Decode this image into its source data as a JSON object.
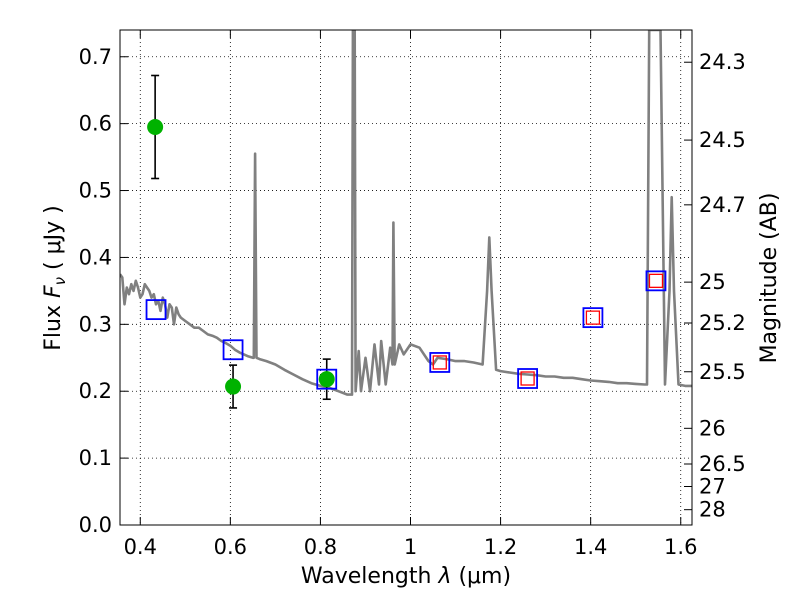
{
  "chart_data": {
    "type": "scatter",
    "xlabel": "Wavelength",
    "xlabel_symbol": "λ",
    "xlabel_unit": "(μm)",
    "ylabel": "Flux",
    "ylabel_symbol": "F",
    "ylabel_symbol_sub": "ν",
    "ylabel_unit": "( μJy )",
    "y2label": "Magnitude (AB)",
    "xlim": [
      0.355,
      1.625
    ],
    "ylim": [
      0.0,
      0.74
    ],
    "grid": true,
    "grid_style": "dotted",
    "x_ticks": [
      {
        "value": 0.4,
        "label": "0.4"
      },
      {
        "value": 0.6,
        "label": "0.6"
      },
      {
        "value": 0.8,
        "label": "0.8"
      },
      {
        "value": 1.0,
        "label": "1"
      },
      {
        "value": 1.2,
        "label": "1.2"
      },
      {
        "value": 1.4,
        "label": "1.4"
      },
      {
        "value": 1.6,
        "label": "1.6"
      }
    ],
    "y_ticks": [
      {
        "value": 0.0,
        "label": "0.0"
      },
      {
        "value": 0.1,
        "label": "0.1"
      },
      {
        "value": 0.2,
        "label": "0.2"
      },
      {
        "value": 0.3,
        "label": "0.3"
      },
      {
        "value": 0.4,
        "label": "0.4"
      },
      {
        "value": 0.5,
        "label": "0.5"
      },
      {
        "value": 0.6,
        "label": "0.6"
      },
      {
        "value": 0.7,
        "label": "0.7"
      }
    ],
    "y2_ticks": [
      {
        "value": 24.3,
        "label": "24.3"
      },
      {
        "value": 24.5,
        "label": "24.5"
      },
      {
        "value": 24.7,
        "label": "24.7"
      },
      {
        "value": 25.0,
        "label": "25"
      },
      {
        "value": 25.2,
        "label": "25.2"
      },
      {
        "value": 25.5,
        "label": "25.5"
      },
      {
        "value": 26.0,
        "label": "26"
      },
      {
        "value": 26.5,
        "label": "26.5"
      },
      {
        "value": 27.0,
        "label": "27"
      },
      {
        "value": 28.0,
        "label": "28"
      }
    ],
    "series": [
      {
        "kind": "line",
        "color": "#808080",
        "points": [
          [
            0.355,
            0.375
          ],
          [
            0.36,
            0.37
          ],
          [
            0.365,
            0.33
          ],
          [
            0.37,
            0.355
          ],
          [
            0.375,
            0.345
          ],
          [
            0.38,
            0.36
          ],
          [
            0.385,
            0.35
          ],
          [
            0.39,
            0.365
          ],
          [
            0.395,
            0.355
          ],
          [
            0.4,
            0.34
          ],
          [
            0.405,
            0.345
          ],
          [
            0.41,
            0.36
          ],
          [
            0.415,
            0.355
          ],
          [
            0.42,
            0.35
          ],
          [
            0.425,
            0.34
          ],
          [
            0.43,
            0.345
          ],
          [
            0.435,
            0.33
          ],
          [
            0.44,
            0.335
          ],
          [
            0.445,
            0.32
          ],
          [
            0.45,
            0.34
          ],
          [
            0.455,
            0.33
          ],
          [
            0.46,
            0.31
          ],
          [
            0.465,
            0.33
          ],
          [
            0.47,
            0.325
          ],
          [
            0.475,
            0.3
          ],
          [
            0.48,
            0.325
          ],
          [
            0.485,
            0.315
          ],
          [
            0.49,
            0.31
          ],
          [
            0.5,
            0.305
          ],
          [
            0.51,
            0.3
          ],
          [
            0.52,
            0.295
          ],
          [
            0.53,
            0.295
          ],
          [
            0.54,
            0.29
          ],
          [
            0.55,
            0.285
          ],
          [
            0.56,
            0.283
          ],
          [
            0.57,
            0.28
          ],
          [
            0.58,
            0.275
          ],
          [
            0.59,
            0.272
          ],
          [
            0.6,
            0.268
          ],
          [
            0.61,
            0.262
          ],
          [
            0.62,
            0.258
          ],
          [
            0.63,
            0.255
          ],
          [
            0.64,
            0.252
          ],
          [
            0.65,
            0.25
          ],
          [
            0.652,
            0.25
          ],
          [
            0.655,
            0.555
          ],
          [
            0.658,
            0.25
          ],
          [
            0.665,
            0.248
          ],
          [
            0.68,
            0.245
          ],
          [
            0.7,
            0.24
          ],
          [
            0.72,
            0.232
          ],
          [
            0.74,
            0.225
          ],
          [
            0.76,
            0.218
          ],
          [
            0.78,
            0.212
          ],
          [
            0.8,
            0.208
          ],
          [
            0.82,
            0.205
          ],
          [
            0.84,
            0.2
          ],
          [
            0.86,
            0.195
          ],
          [
            0.87,
            0.195
          ],
          [
            0.872,
            0.74
          ],
          [
            0.876,
            0.74
          ],
          [
            0.878,
            0.2
          ],
          [
            0.885,
            0.26
          ],
          [
            0.89,
            0.2
          ],
          [
            0.9,
            0.25
          ],
          [
            0.91,
            0.2
          ],
          [
            0.92,
            0.27
          ],
          [
            0.93,
            0.21
          ],
          [
            0.935,
            0.275
          ],
          [
            0.945,
            0.21
          ],
          [
            0.955,
            0.265
          ],
          [
            0.96,
            0.24
          ],
          [
            0.962,
            0.452
          ],
          [
            0.965,
            0.24
          ],
          [
            0.975,
            0.27
          ],
          [
            0.985,
            0.255
          ],
          [
            1.0,
            0.27
          ],
          [
            1.02,
            0.265
          ],
          [
            1.04,
            0.245
          ],
          [
            1.05,
            0.24
          ],
          [
            1.06,
            0.25
          ],
          [
            1.08,
            0.248
          ],
          [
            1.1,
            0.245
          ],
          [
            1.12,
            0.245
          ],
          [
            1.14,
            0.243
          ],
          [
            1.16,
            0.24
          ],
          [
            1.17,
            0.35
          ],
          [
            1.175,
            0.43
          ],
          [
            1.18,
            0.35
          ],
          [
            1.19,
            0.232
          ],
          [
            1.2,
            0.23
          ],
          [
            1.22,
            0.228
          ],
          [
            1.24,
            0.226
          ],
          [
            1.26,
            0.225
          ],
          [
            1.28,
            0.224
          ],
          [
            1.3,
            0.222
          ],
          [
            1.32,
            0.222
          ],
          [
            1.34,
            0.22
          ],
          [
            1.36,
            0.22
          ],
          [
            1.38,
            0.218
          ],
          [
            1.4,
            0.216
          ],
          [
            1.42,
            0.215
          ],
          [
            1.44,
            0.214
          ],
          [
            1.46,
            0.212
          ],
          [
            1.48,
            0.212
          ],
          [
            1.5,
            0.211
          ],
          [
            1.52,
            0.21
          ],
          [
            1.525,
            0.21
          ],
          [
            1.53,
            0.74
          ],
          [
            1.555,
            0.74
          ],
          [
            1.565,
            0.21
          ],
          [
            1.575,
            0.35
          ],
          [
            1.58,
            0.49
          ],
          [
            1.585,
            0.35
          ],
          [
            1.595,
            0.21
          ],
          [
            1.61,
            0.208
          ],
          [
            1.625,
            0.208
          ]
        ]
      },
      {
        "kind": "errorbar",
        "marker": "circle",
        "color": "#00b200",
        "points": [
          {
            "x": 0.433,
            "y": 0.595,
            "yerr": 0.077
          },
          {
            "x": 0.606,
            "y": 0.207,
            "yerr": 0.032
          },
          {
            "x": 0.814,
            "y": 0.218,
            "yerr": 0.03
          }
        ]
      },
      {
        "kind": "markers",
        "marker": "square-open",
        "color": "#0000ff",
        "points": [
          [
            0.435,
            0.322
          ],
          [
            0.606,
            0.262
          ],
          [
            0.814,
            0.218
          ],
          [
            1.065,
            0.243
          ],
          [
            1.26,
            0.219
          ],
          [
            1.405,
            0.31
          ],
          [
            1.545,
            0.365
          ]
        ]
      },
      {
        "kind": "markers",
        "marker": "square-open-small",
        "color": "#ff0000",
        "points": [
          [
            1.065,
            0.243
          ],
          [
            1.26,
            0.219
          ],
          [
            1.405,
            0.31
          ],
          [
            1.545,
            0.365
          ]
        ]
      }
    ]
  }
}
